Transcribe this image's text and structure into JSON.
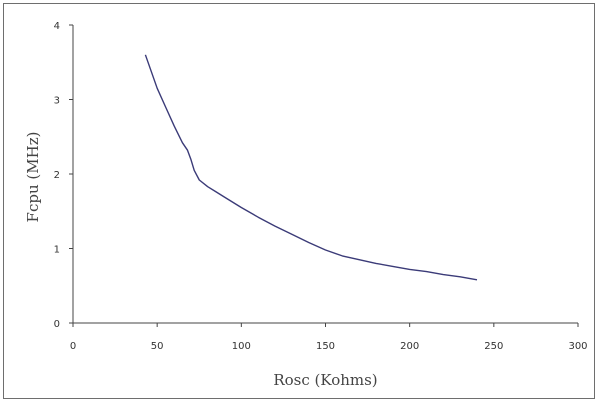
{
  "chart_data": {
    "type": "line",
    "title": "",
    "xlabel": "Rosc (Kohms)",
    "ylabel": "Fcpu (MHz)",
    "xlim": [
      0,
      300
    ],
    "ylim": [
      0,
      4
    ],
    "xticks": [
      0,
      50,
      100,
      150,
      200,
      250,
      300
    ],
    "yticks": [
      0,
      1,
      2,
      3,
      4
    ],
    "grid": false,
    "legend": "none",
    "series": [
      {
        "color": "#3b3b78",
        "x": [
          43,
          50,
          55,
          60,
          65,
          68,
          70,
          72,
          75,
          80,
          85,
          90,
          100,
          110,
          120,
          130,
          140,
          150,
          160,
          170,
          180,
          190,
          200,
          210,
          220,
          230,
          240
        ],
        "y": [
          3.6,
          3.15,
          2.9,
          2.65,
          2.42,
          2.32,
          2.2,
          2.05,
          1.92,
          1.83,
          1.76,
          1.69,
          1.55,
          1.42,
          1.3,
          1.19,
          1.08,
          0.98,
          0.9,
          0.85,
          0.8,
          0.76,
          0.72,
          0.69,
          0.65,
          0.62,
          0.58
        ]
      }
    ]
  }
}
